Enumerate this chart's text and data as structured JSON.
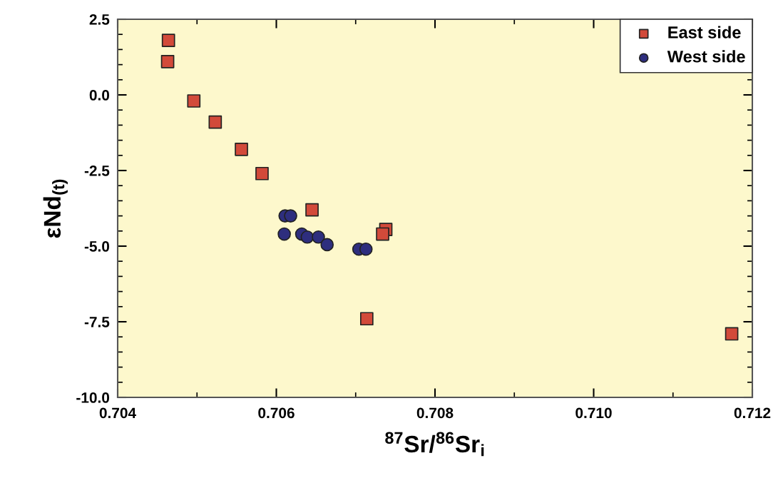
{
  "chart_data": {
    "type": "scatter",
    "xlabel": "$^{87}$Sr/$^{86}$Sr$_{i}$",
    "ylabel": "εNd$_{(t)}$",
    "series": [
      {
        "name": "East side",
        "color": "#d24a3a",
        "marker": "square",
        "x": [
          0.70464,
          0.70463,
          0.70496,
          0.70523,
          0.70556,
          0.70582,
          0.70645,
          0.70714,
          0.70738,
          0.70734,
          0.71174
        ],
        "values": [
          1.8,
          1.1,
          -0.2,
          -0.9,
          -1.8,
          -2.6,
          -3.8,
          -7.4,
          -4.45,
          -4.6,
          -7.9
        ]
      },
      {
        "name": "West side",
        "color": "#2e2e7e",
        "marker": "circle",
        "x": [
          0.70611,
          0.70618,
          0.7061,
          0.70632,
          0.70639,
          0.70653,
          0.70664,
          0.70704,
          0.70713
        ],
        "values": [
          -4.0,
          -4.0,
          -4.6,
          -4.6,
          -4.7,
          -4.7,
          -4.95,
          -5.1,
          -5.1
        ]
      }
    ],
    "xlim": [
      0.704,
      0.712
    ],
    "ylim": [
      -10.0,
      2.5
    ],
    "xticks": [
      {
        "value": 0.704,
        "label": "0.704"
      },
      {
        "value": 0.705,
        "label": null
      },
      {
        "value": 0.706,
        "label": "0.706"
      },
      {
        "value": 0.707,
        "label": null
      },
      {
        "value": 0.708,
        "label": "0.708"
      },
      {
        "value": 0.709,
        "label": null
      },
      {
        "value": 0.71,
        "label": "0.710"
      },
      {
        "value": 0.711,
        "label": null
      },
      {
        "value": 0.712,
        "label": "0.712"
      }
    ],
    "yticks": [
      {
        "value": -10.0,
        "label": "-10.0"
      },
      {
        "value": -9.5,
        "label": null
      },
      {
        "value": -9.0,
        "label": null
      },
      {
        "value": -8.5,
        "label": null
      },
      {
        "value": -8.0,
        "label": null
      },
      {
        "value": -7.5,
        "label": "-7.5"
      },
      {
        "value": -7.0,
        "label": null
      },
      {
        "value": -6.5,
        "label": null
      },
      {
        "value": -6.0,
        "label": null
      },
      {
        "value": -5.5,
        "label": null
      },
      {
        "value": -5.0,
        "label": "-5.0"
      },
      {
        "value": -4.5,
        "label": null
      },
      {
        "value": -4.0,
        "label": null
      },
      {
        "value": -3.5,
        "label": null
      },
      {
        "value": -3.0,
        "label": null
      },
      {
        "value": -2.5,
        "label": "-2.5"
      },
      {
        "value": -2.0,
        "label": null
      },
      {
        "value": -1.5,
        "label": null
      },
      {
        "value": -1.0,
        "label": null
      },
      {
        "value": -0.5,
        "label": null
      },
      {
        "value": 0.0,
        "label": "0.0"
      },
      {
        "value": 0.5,
        "label": null
      },
      {
        "value": 1.0,
        "label": null
      },
      {
        "value": 1.5,
        "label": null
      },
      {
        "value": 2.0,
        "label": null
      },
      {
        "value": 2.5,
        "label": "2.5"
      }
    ],
    "grid": false,
    "legend": "top right"
  }
}
